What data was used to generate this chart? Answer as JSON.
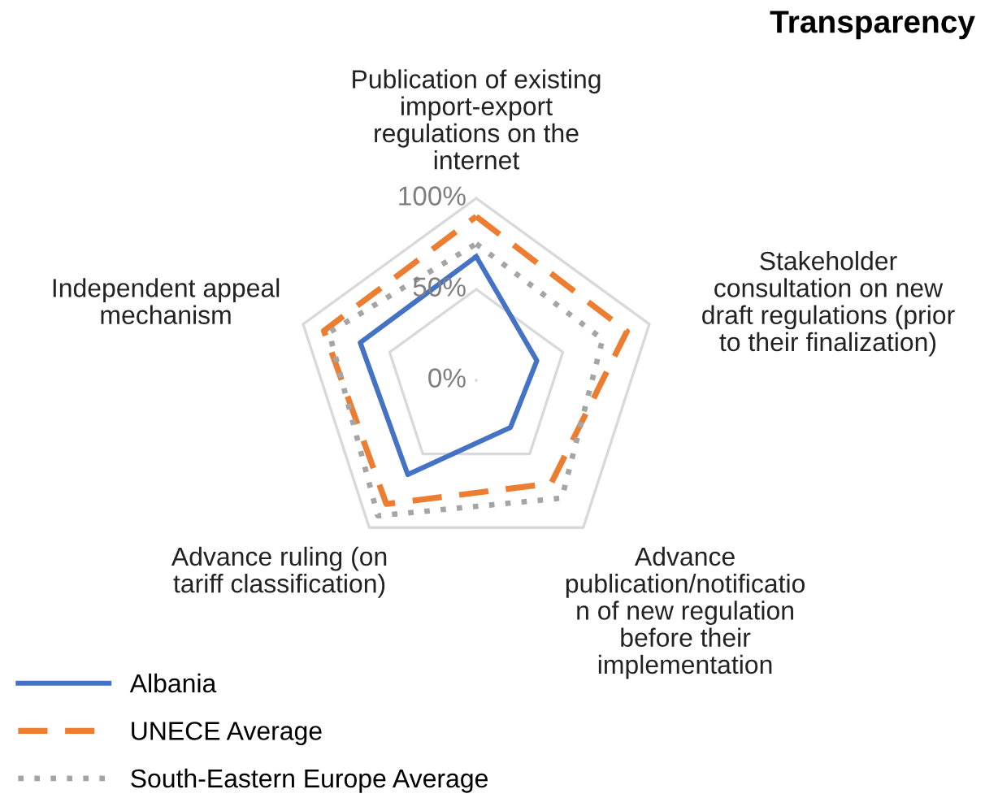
{
  "chart_data": {
    "type": "radar",
    "title": "Transparency",
    "categories": [
      "Publication of existing\nimport-export\nregulations on the\ninternet",
      "Stakeholder\nconsultation on new\ndraft regulations (prior\nto their finalization)",
      "Advance\npublication/notificatio\nn of new regulation\nbefore their\nimplementation",
      "Advance ruling (on\ntariff classification)",
      "Independent appeal\nmechanism"
    ],
    "series": [
      {
        "name": "Albania",
        "color": "#4472c4",
        "line_style": "solid",
        "values": [
          68,
          35,
          32,
          64,
          67
        ]
      },
      {
        "name": "UNECE Average",
        "color": "#ed7d31",
        "line_style": "dashed",
        "values": [
          90,
          87,
          70,
          84,
          88
        ]
      },
      {
        "name": "South-Eastern Europe Average",
        "color": "#a5a5a5",
        "line_style": "dotted",
        "values": [
          75,
          73,
          80,
          92,
          85
        ]
      }
    ],
    "ylim": [
      0,
      100
    ],
    "yticks": [
      {
        "value": 0,
        "label": "0%"
      },
      {
        "value": 50,
        "label": "50%"
      },
      {
        "value": 100,
        "label": "100%"
      }
    ],
    "grid": true,
    "legend": "bottom left",
    "marker": "none"
  }
}
